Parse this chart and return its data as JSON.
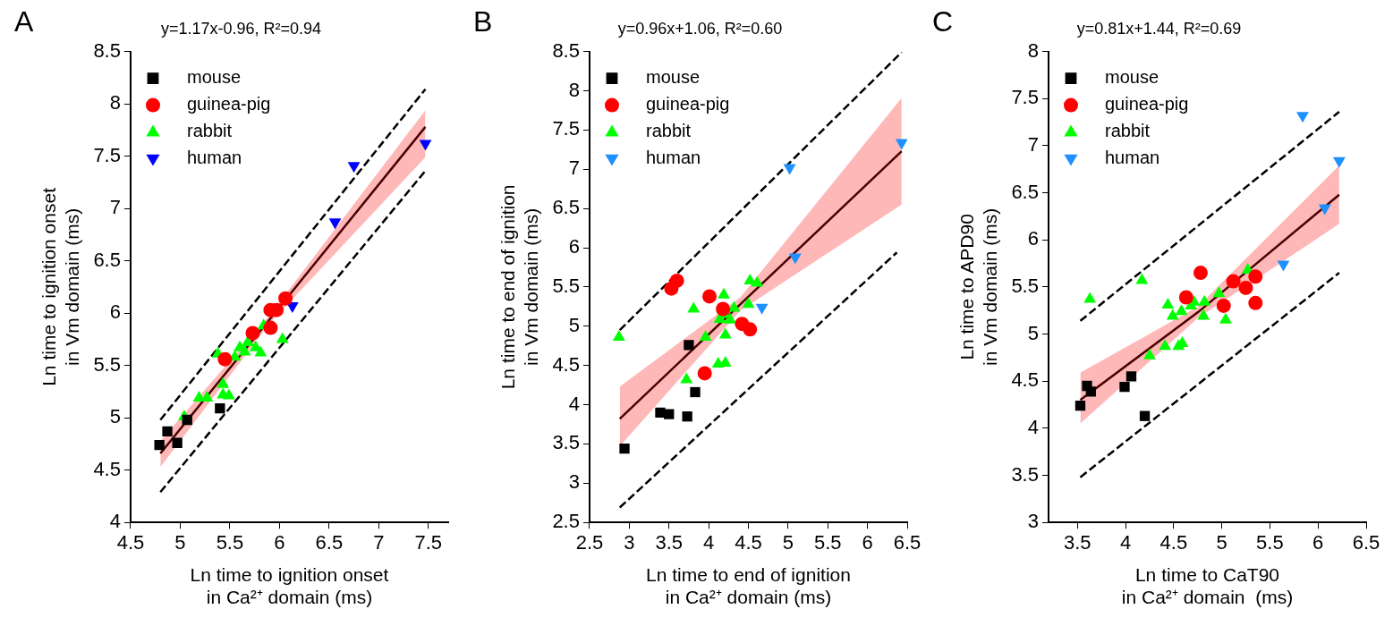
{
  "chart_data": [
    {
      "type": "scatter",
      "title": "y=1.17x-0.96, R²=0.94",
      "annotations": [
        "A"
      ],
      "xlabel": "Ln time to ignition onset\nin Ca²⁺ domain (ms)",
      "ylabel": "Ln time to ignition onset\nin Vm domain (ms)",
      "xlim": [
        4.5,
        7.7
      ],
      "xticks": [
        4.5,
        5,
        5.5,
        6,
        6.5,
        7,
        7.5
      ],
      "ylim": [
        4,
        8.5
      ],
      "yticks": [
        4,
        4.5,
        5,
        5.5,
        6,
        6.5,
        7,
        7.5,
        8,
        8.5
      ],
      "legend": "top left",
      "series": [
        {
          "name": "mouse",
          "color": "#000000",
          "marker": "square",
          "x": [
            4.79,
            4.87,
            4.97,
            5.07,
            5.4
          ],
          "values": [
            4.74,
            4.87,
            4.76,
            4.98,
            5.09
          ]
        },
        {
          "name": "guinea-pig",
          "color": "#ff0000",
          "marker": "circle",
          "x": [
            5.45,
            5.73,
            5.91,
            5.91,
            5.97,
            6.06
          ],
          "values": [
            5.56,
            5.81,
            5.86,
            6.03,
            6.03,
            6.14
          ]
        },
        {
          "name": "rabbit",
          "color": "#00ff00",
          "marker": "triangle",
          "x": [
            5.04,
            5.19,
            5.27,
            5.38,
            5.43,
            5.43,
            5.49,
            5.55,
            5.6,
            5.65,
            5.68,
            5.76,
            5.81,
            5.84,
            6.03
          ],
          "values": [
            5.01,
            5.19,
            5.19,
            5.61,
            5.32,
            5.22,
            5.21,
            5.58,
            5.67,
            5.63,
            5.72,
            5.67,
            5.62,
            5.88,
            5.75
          ]
        },
        {
          "name": "human",
          "color": "#0000ff",
          "marker": "triangle-down",
          "x": [
            6.13,
            6.56,
            6.75,
            7.47
          ],
          "values": [
            6.07,
            6.87,
            7.41,
            7.62
          ]
        },
        {
          "type": "line",
          "color": "#4a0000",
          "marker": "none",
          "line_style": "solid",
          "x": [
            4.8,
            5.9,
            7.47
          ],
          "values": [
            4.66,
            5.94,
            7.78
          ],
          "lower": [
            4.53,
            5.9,
            7.49
          ],
          "upper": [
            4.78,
            5.98,
            7.94
          ]
        },
        {
          "type": "line",
          "color": "#000000",
          "marker": "none",
          "line_style": "dashed",
          "x": [
            4.8,
            7.47
          ],
          "values": [
            4.98,
            8.14
          ]
        },
        {
          "type": "line",
          "color": "#000000",
          "marker": "none",
          "line_style": "dashed",
          "x": [
            4.8,
            7.47
          ],
          "values": [
            4.29,
            7.36
          ]
        }
      ]
    },
    {
      "type": "scatter",
      "title": "y=0.96x+1.06, R²=0.60",
      "annotations": [
        "B"
      ],
      "xlabel": "Ln time to end of ignition\nin Ca²⁺ domain (ms)",
      "ylabel": "Ln time to end of ignition\nin Vm domain (ms)",
      "xlim": [
        2.5,
        6.5
      ],
      "xticks": [
        2.5,
        3,
        3.5,
        4,
        4.5,
        5,
        5.5,
        6,
        6.5
      ],
      "ylim": [
        2.5,
        8.5
      ],
      "yticks": [
        2.5,
        3,
        3.5,
        4,
        4.5,
        5,
        5.5,
        6,
        6.5,
        7,
        7.5,
        8,
        8.5
      ],
      "legend": "top left",
      "series": [
        {
          "name": "mouse",
          "color": "#000000",
          "marker": "square",
          "x": [
            2.94,
            3.39,
            3.5,
            3.73,
            3.75,
            3.83
          ],
          "values": [
            3.44,
            3.9,
            3.88,
            3.85,
            4.76,
            4.16
          ]
        },
        {
          "name": "guinea-pig",
          "color": "#ff0000",
          "marker": "circle",
          "x": [
            3.53,
            3.6,
            3.95,
            4.01,
            4.18,
            4.42,
            4.52
          ],
          "values": [
            5.48,
            5.58,
            4.4,
            5.38,
            5.22,
            5.03,
            4.96
          ]
        },
        {
          "name": "rabbit",
          "color": "#00ff00",
          "marker": "triangle",
          "x": [
            2.87,
            3.72,
            3.81,
            3.96,
            4.12,
            4.21,
            4.19,
            4.14,
            4.2,
            4.27,
            4.32,
            4.21,
            4.5,
            4.52,
            4.61
          ],
          "values": [
            4.86,
            4.32,
            5.22,
            4.86,
            4.52,
            4.53,
            5.4,
            5.09,
            5.15,
            5.08,
            5.23,
            4.89,
            5.28,
            5.58,
            5.55
          ]
        },
        {
          "name": "human",
          "color": "#1e90ff",
          "marker": "triangle-down",
          "x": [
            4.67,
            5.02,
            5.09,
            6.43
          ],
          "values": [
            5.24,
            7.02,
            5.88,
            7.34
          ]
        },
        {
          "type": "line",
          "color": "#4a0000",
          "marker": "none",
          "line_style": "solid",
          "x": [
            2.88,
            4.4,
            6.43
          ],
          "values": [
            3.82,
            5.28,
            7.23
          ],
          "lower": [
            3.47,
            5.2,
            6.55
          ],
          "upper": [
            4.23,
            5.37,
            7.91
          ]
        },
        {
          "type": "line",
          "color": "#000000",
          "marker": "none",
          "line_style": "dashed",
          "x": [
            2.88,
            6.43
          ],
          "values": [
            4.95,
            8.49
          ]
        },
        {
          "type": "line",
          "color": "#000000",
          "marker": "none",
          "line_style": "dashed",
          "x": [
            2.88,
            6.37
          ],
          "values": [
            2.69,
            5.94
          ]
        }
      ]
    },
    {
      "type": "scatter",
      "title": "y=0.81x+1.44, R²=0.69",
      "annotations": [
        "C"
      ],
      "xlabel": "Ln time to CaT90\nin Ca²⁺ domain  (ms)",
      "ylabel": "Ln time to APD90\nin Vm domain (ms)",
      "xlim": [
        3.2,
        6.5
      ],
      "xticks": [
        3.5,
        4,
        4.5,
        5,
        5.5,
        6,
        6.5
      ],
      "ylim": [
        3,
        8
      ],
      "yticks": [
        3,
        3.5,
        4,
        4.5,
        5,
        5.5,
        6,
        6.5,
        7,
        7.5,
        8
      ],
      "legend": "top left",
      "series": [
        {
          "name": "mouse",
          "color": "#000000",
          "marker": "square",
          "x": [
            3.53,
            3.6,
            3.64,
            3.99,
            4.06,
            4.2
          ],
          "values": [
            4.24,
            4.45,
            4.39,
            4.44,
            4.55,
            4.13
          ]
        },
        {
          "name": "guinea-pig",
          "color": "#ff0000",
          "marker": "circle",
          "x": [
            4.63,
            4.78,
            5.02,
            5.12,
            5.25,
            5.35,
            5.35
          ],
          "values": [
            5.39,
            5.65,
            5.3,
            5.56,
            5.49,
            5.61,
            5.33
          ]
        },
        {
          "name": "rabbit",
          "color": "#00ff00",
          "marker": "triangle",
          "x": [
            3.63,
            4.17,
            4.25,
            4.41,
            4.44,
            4.49,
            4.55,
            4.59,
            4.58,
            4.68,
            4.71,
            4.81,
            4.82,
            4.97,
            5.04,
            5.27
          ],
          "values": [
            5.37,
            5.57,
            4.77,
            4.87,
            5.31,
            5.19,
            4.87,
            4.9,
            5.24,
            5.3,
            5.34,
            5.19,
            5.34,
            5.43,
            5.15,
            5.68
          ]
        },
        {
          "name": "human",
          "color": "#1e90ff",
          "marker": "triangle-down",
          "x": [
            5.64,
            5.84,
            6.07,
            6.22
          ],
          "values": [
            5.74,
            7.32,
            6.34,
            6.84
          ]
        },
        {
          "type": "line",
          "color": "#4a0000",
          "marker": "none",
          "line_style": "solid",
          "x": [
            3.53,
            4.75,
            6.22
          ],
          "values": [
            4.3,
            5.23,
            6.48
          ],
          "lower": [
            4.05,
            5.17,
            6.17
          ],
          "upper": [
            4.59,
            5.29,
            6.79
          ]
        },
        {
          "type": "line",
          "color": "#000000",
          "marker": "none",
          "line_style": "dashed",
          "x": [
            3.53,
            6.22
          ],
          "values": [
            5.14,
            7.36
          ]
        },
        {
          "type": "line",
          "color": "#000000",
          "marker": "none",
          "line_style": "dashed",
          "x": [
            3.53,
            6.22
          ],
          "values": [
            3.48,
            5.65
          ]
        }
      ]
    }
  ]
}
